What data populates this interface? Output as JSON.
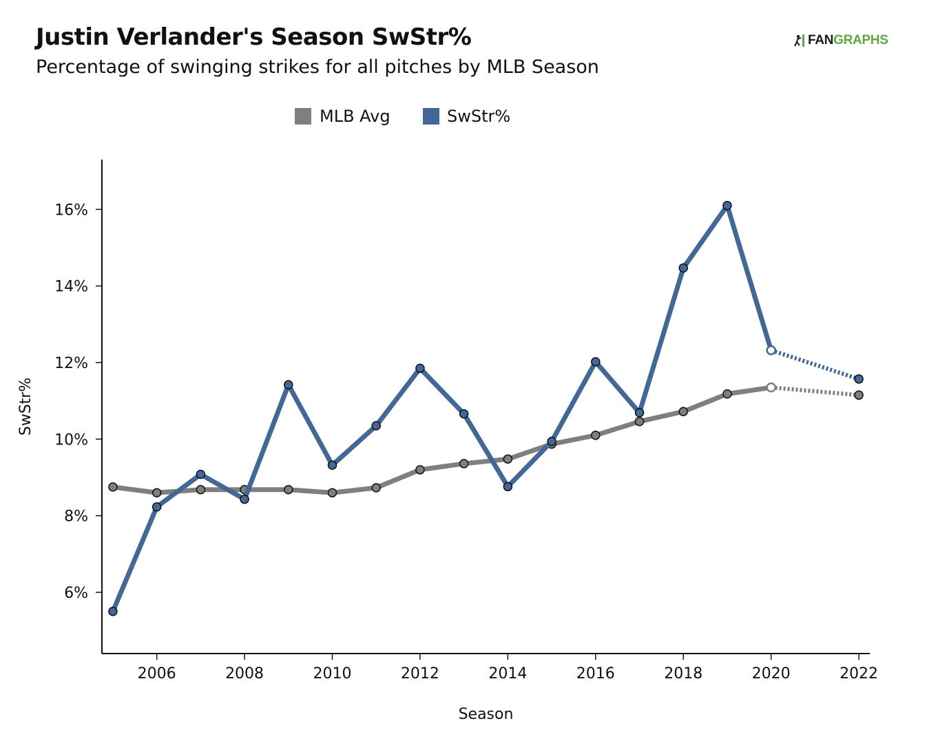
{
  "header": {
    "title": "Justin Verlander's Season SwStr%",
    "subtitle": "Percentage of swinging strikes for all pitches by MLB Season",
    "logo_text_dark": "FAN",
    "logo_text_green": "GRAPHS"
  },
  "colors": {
    "swstr": "#436898",
    "mlb_avg": "#7f7f7f",
    "brand_green": "#5fa844"
  },
  "chart_data": {
    "type": "line",
    "xlabel": "Season",
    "ylabel": "SwStr%",
    "x_ticks": [
      2006,
      2008,
      2010,
      2012,
      2014,
      2016,
      2018,
      2020,
      2022
    ],
    "y_ticks": [
      6,
      8,
      10,
      12,
      14,
      16
    ],
    "y_tick_labels": [
      "6%",
      "8%",
      "10%",
      "12%",
      "14%",
      "16%"
    ],
    "xlim": [
      2004.75,
      2022.25
    ],
    "ylim": [
      4.4,
      17.3
    ],
    "legend_position": "top-center",
    "legend": [
      "MLB Avg",
      "SwStr%"
    ],
    "grid": false,
    "series": [
      {
        "name": "MLB Avg",
        "color": "#7f7f7f",
        "x": [
          2005,
          2006,
          2007,
          2008,
          2009,
          2010,
          2011,
          2012,
          2013,
          2014,
          2015,
          2016,
          2017,
          2018,
          2019,
          2020,
          2022
        ],
        "values": [
          8.75,
          8.6,
          8.68,
          8.68,
          8.68,
          8.6,
          8.73,
          9.2,
          9.36,
          9.48,
          9.87,
          10.1,
          10.46,
          10.72,
          11.18,
          11.35,
          11.15
        ],
        "dotted_segment_from": 2020
      },
      {
        "name": "SwStr%",
        "color": "#436898",
        "x": [
          2005,
          2006,
          2007,
          2008,
          2009,
          2010,
          2011,
          2012,
          2013,
          2014,
          2015,
          2016,
          2017,
          2018,
          2019,
          2020,
          2022
        ],
        "values": [
          5.5,
          8.23,
          9.08,
          8.43,
          11.42,
          9.32,
          10.35,
          11.85,
          10.66,
          8.76,
          9.94,
          12.02,
          10.69,
          14.47,
          16.1,
          12.32,
          11.57
        ],
        "dotted_segment_from": 2020
      }
    ]
  }
}
